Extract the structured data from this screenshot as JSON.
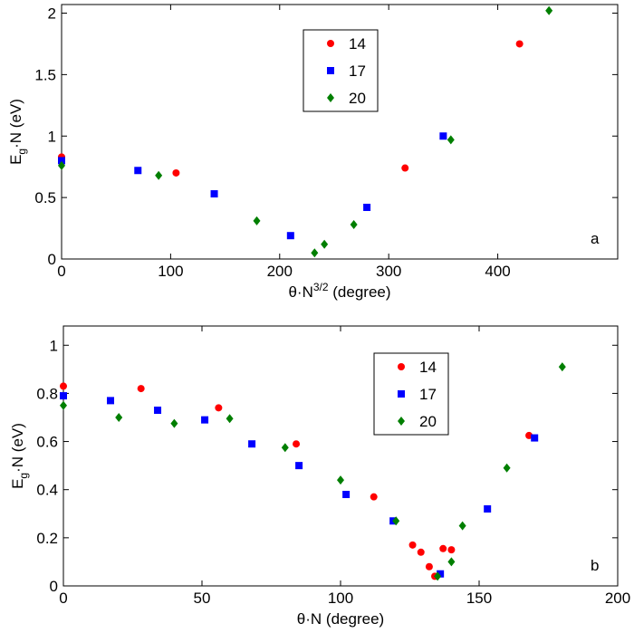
{
  "chart_data": [
    {
      "type": "scatter",
      "x_label": {
        "base": "θ·N",
        "sup": "3/2",
        "rest": " (degree)"
      },
      "y_label": {
        "base": "E",
        "sub": "g",
        "rest": "·N (eV)"
      },
      "annotation": "a",
      "xlim": [
        0,
        510
      ],
      "xticks": [
        0,
        100,
        200,
        300,
        400
      ],
      "ylim": [
        0,
        2.07
      ],
      "yticks": [
        0,
        0.5,
        1,
        1.5,
        2
      ],
      "legend": "upper center",
      "series": [
        {
          "name": "14",
          "color": "#ff0000",
          "marker": "circle",
          "x": [
            0,
            105,
            315,
            420
          ],
          "values": [
            0.83,
            0.7,
            0.74,
            1.75
          ]
        },
        {
          "name": "17",
          "color": "#0000ff",
          "marker": "square",
          "x": [
            0,
            70,
            140,
            210,
            280,
            350
          ],
          "values": [
            0.8,
            0.72,
            0.53,
            0.19,
            0.42,
            1.0
          ]
        },
        {
          "name": "20",
          "color": "#007f00",
          "marker": "diamond",
          "x": [
            0,
            89,
            179,
            232,
            241,
            268,
            357,
            447
          ],
          "values": [
            0.76,
            0.68,
            0.31,
            0.05,
            0.12,
            0.28,
            0.97,
            2.02
          ]
        }
      ]
    },
    {
      "type": "scatter",
      "x_label": {
        "base": "θ·N",
        "rest": " (degree)"
      },
      "y_label": {
        "base": "E",
        "sub": "g",
        "rest": "·N (eV)"
      },
      "annotation": "b",
      "xlim": [
        0,
        200
      ],
      "xticks": [
        0,
        50,
        100,
        150,
        200
      ],
      "ylim": [
        0,
        1.08
      ],
      "yticks": [
        0,
        0.2,
        0.4,
        0.6,
        0.8,
        1
      ],
      "legend": "upper center",
      "series": [
        {
          "name": "14",
          "color": "#ff0000",
          "marker": "circle",
          "x": [
            0,
            28,
            56,
            84,
            112,
            126,
            129,
            132,
            134,
            137,
            140,
            168
          ],
          "values": [
            0.83,
            0.82,
            0.74,
            0.59,
            0.37,
            0.17,
            0.14,
            0.08,
            0.04,
            0.155,
            0.15,
            0.625
          ]
        },
        {
          "name": "17",
          "color": "#0000ff",
          "marker": "square",
          "x": [
            0,
            17,
            34,
            51,
            68,
            85,
            102,
            119,
            136,
            153,
            170
          ],
          "values": [
            0.79,
            0.77,
            0.73,
            0.69,
            0.59,
            0.5,
            0.38,
            0.27,
            0.05,
            0.32,
            0.615
          ]
        },
        {
          "name": "20",
          "color": "#007f00",
          "marker": "diamond",
          "x": [
            0,
            20,
            40,
            60,
            80,
            100,
            120,
            135,
            140,
            144,
            160,
            180
          ],
          "values": [
            0.75,
            0.7,
            0.675,
            0.695,
            0.575,
            0.44,
            0.27,
            0.04,
            0.1,
            0.25,
            0.49,
            0.91
          ]
        }
      ]
    }
  ]
}
